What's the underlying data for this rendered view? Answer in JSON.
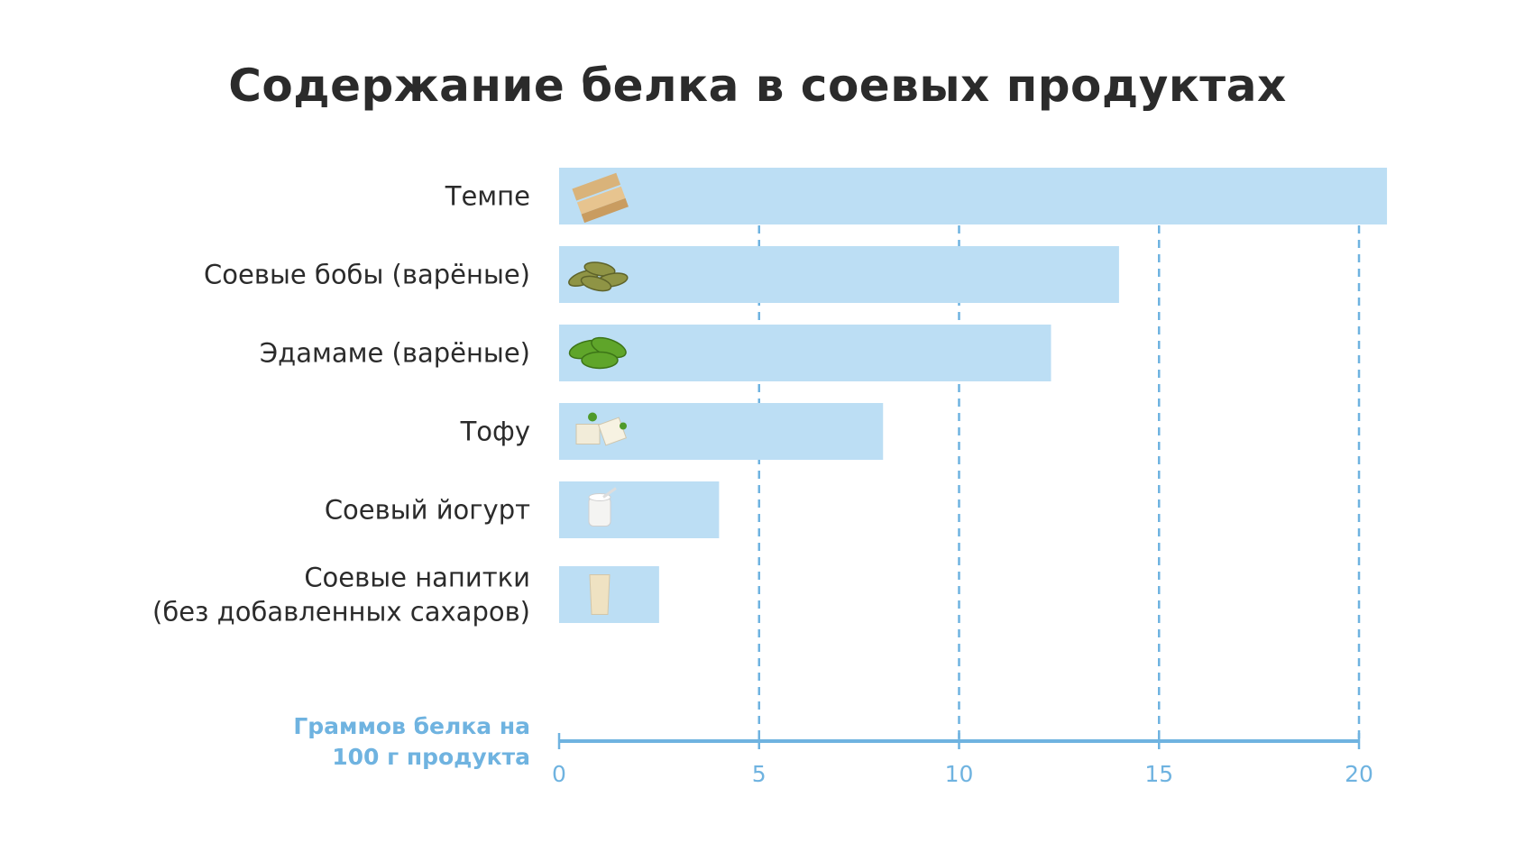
{
  "chart_data": {
    "type": "bar",
    "orientation": "horizontal",
    "title": "Содержание белка в соевых продуктах",
    "categories": [
      [
        "Темпе"
      ],
      [
        "Соевые бобы (варёные)"
      ],
      [
        "Эдамаме (варёные)"
      ],
      [
        "Тофу"
      ],
      [
        "Соевый йогурт"
      ],
      [
        "Соевые напитки",
        "(без добавленных сахаров)"
      ]
    ],
    "icons": [
      "tempeh-icon",
      "soybeans-icon",
      "edamame-icon",
      "tofu-icon",
      "yogurt-icon",
      "soy-drink-icon"
    ],
    "values": [
      20.7,
      14,
      12.3,
      8.1,
      4,
      2.5
    ],
    "xlabel": [
      "Граммов белка на",
      "100 г продукта"
    ],
    "xticks": [
      0,
      5,
      10,
      15,
      20
    ],
    "xlim": [
      0,
      20.8
    ],
    "grid": "vertical dashed",
    "colors": {
      "bar": "#bcdef4",
      "axis": "#6fb3e0",
      "text": "#2b2b2b"
    }
  }
}
